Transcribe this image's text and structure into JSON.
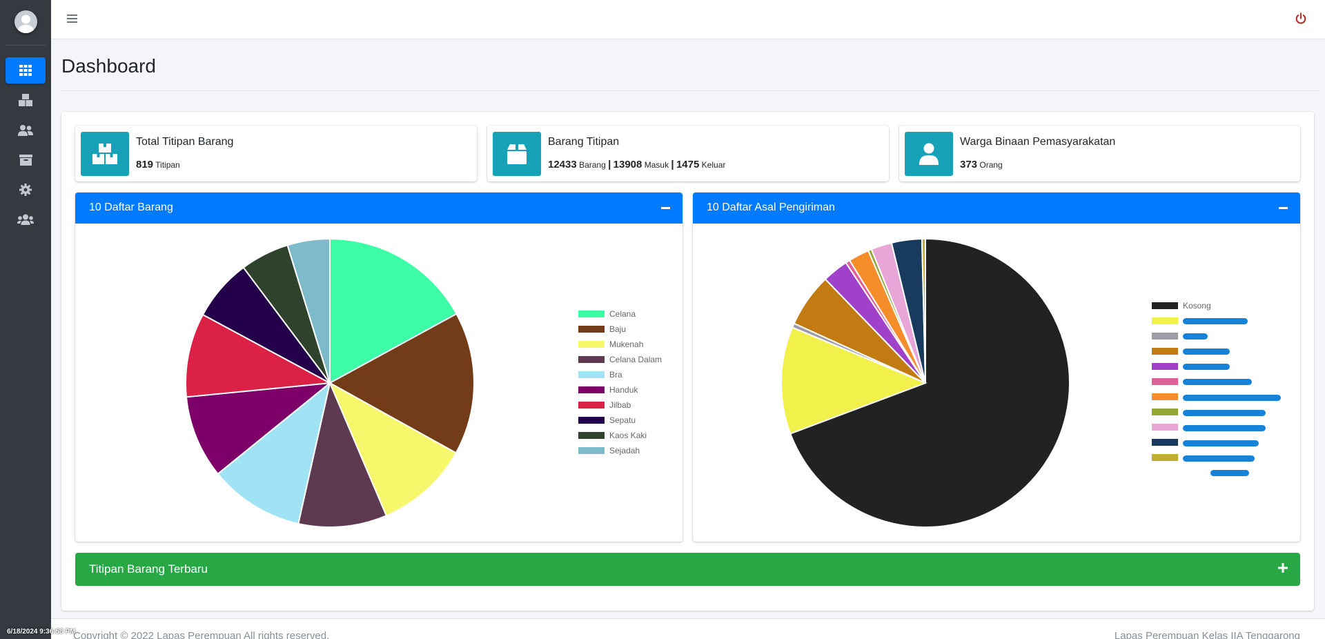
{
  "page": {
    "title": "Dashboard"
  },
  "info_boxes": [
    {
      "title": "Total Titipan Barang",
      "value1": "819",
      "unit1": "Titipan"
    },
    {
      "title": "Barang Titipan",
      "value1": "12433",
      "unit1": "Barang",
      "value2": "13908",
      "unit2": "Masuk",
      "value3": "1475",
      "unit3": "Keluar",
      "sep": "|"
    },
    {
      "title": "Warga Binaan Pemasyarakatan",
      "value1": "373",
      "unit1": "Orang"
    }
  ],
  "cards": {
    "barang_title": "10 Daftar Barang",
    "asal_title": "10 Daftar Asal Pengiriman",
    "latest_title": "Titipan Barang Terbaru"
  },
  "chart_data": [
    {
      "type": "pie",
      "title": "",
      "categories": [
        "Celana",
        "Baju",
        "Mukenah",
        "Celana Dalam",
        "Bra",
        "Handuk",
        "Jilbab",
        "Sepatu",
        "Kaos Kaki",
        "Sejadah"
      ],
      "values": [
        16.5,
        15.5,
        10.2,
        9.6,
        10.3,
        9.0,
        9.1,
        6.7,
        5.3,
        4.6
      ],
      "colors": [
        "#3cfda6",
        "#733c18",
        "#f7f76b",
        "#5e3a51",
        "#9fe3f5",
        "#7d0068",
        "#db2146",
        "#24004b",
        "#2f432c",
        "#7dbbcb"
      ],
      "legend": "right"
    },
    {
      "type": "pie",
      "title": "",
      "categories": [
        "Kosong",
        "",
        "",
        "",
        "",
        "",
        "",
        "",
        "",
        "",
        ""
      ],
      "values": [
        71.5,
        12.4,
        0.5,
        6.2,
        3.0,
        0.5,
        2.4,
        0.4,
        2.4,
        3.5,
        0.4
      ],
      "colors": [
        "#222222",
        "#f2f04a",
        "#a09ca6",
        "#c27a12",
        "#a042c9",
        "#e0609a",
        "#f58e2a",
        "#94a636",
        "#e8a5d8",
        "#173a5d",
        "#bfae2f"
      ],
      "legend": "right"
    }
  ],
  "footer": {
    "left": "Copyright © 2022 Lapas Perempuan All rights reserved.",
    "right": "Lapas Perempuan Kelas IIA Tenggarong"
  },
  "timestamp": "6/18/2024 9:36:58 PM"
}
